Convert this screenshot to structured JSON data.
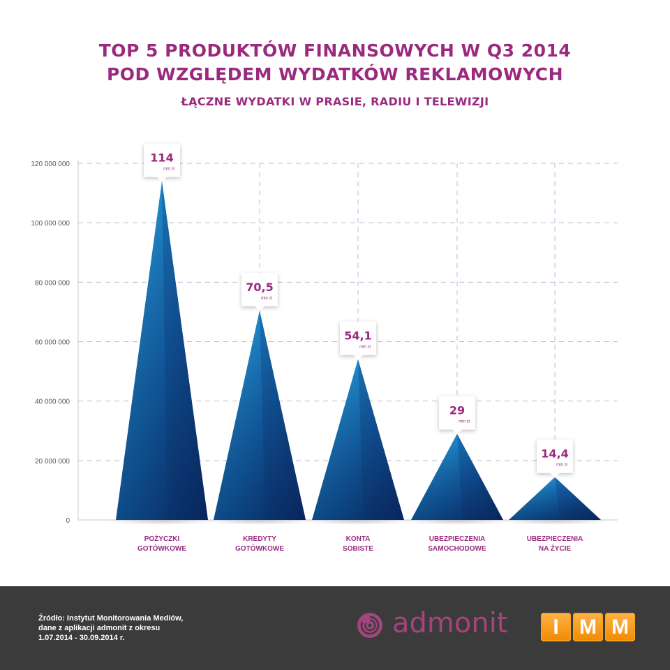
{
  "header": {
    "title_line1": "TOP 5 PRODUKTÓW FINANSOWYCH W Q3 2014",
    "title_line2": "POD WZGLĘDEM WYDATKÓW REKLAMOWYCH",
    "subtitle": "ŁĄCZNE WYDATKI W PRASIE, RADIU I TELEWIZJI"
  },
  "chart_data": {
    "type": "bar",
    "y_tick_labels": [
      "0",
      "20 000 000",
      "40 000 000",
      "60 000 000",
      "80 000 000",
      "100 000 000",
      "120 000 000"
    ],
    "y_ticks": [
      0,
      20000000,
      40000000,
      60000000,
      80000000,
      100000000,
      120000000
    ],
    "ylim": [
      0,
      120000000
    ],
    "grid": true,
    "categories": [
      [
        "POŻYCZKI",
        "GOTÓWKOWE"
      ],
      [
        "KREDYTY",
        "GOTÓWKOWE"
      ],
      [
        "KONTA",
        "SOBISTE"
      ],
      [
        "UBEZPIECZENIA",
        "SAMOCHODOWE"
      ],
      [
        "UBEZPIECZENIA",
        "NA ŻYCIE"
      ]
    ],
    "values": [
      114000000,
      70500000,
      54100000,
      29000000,
      14400000
    ],
    "data_labels": [
      "114",
      "70,5",
      "54,1",
      "29",
      "14,4"
    ],
    "data_label_unit": "mln zł"
  },
  "colors": {
    "title": "#9b2a7e",
    "peak_light": "#2ba8e0",
    "peak_dark": "#0c2f6f",
    "grid": "#b9bbd6",
    "footer": "#3b3b3b",
    "imm_orange": "#f39200"
  },
  "footer": {
    "source_line1": "Źródło: Instytut Monitorowania Mediów,",
    "source_line2": "dane z aplikacji admonit z okresu",
    "source_line3": "1.07.2014 - 30.09.2014 r.",
    "admonit_text": "admonit",
    "imm_letters": [
      "I",
      "M",
      "M"
    ]
  }
}
